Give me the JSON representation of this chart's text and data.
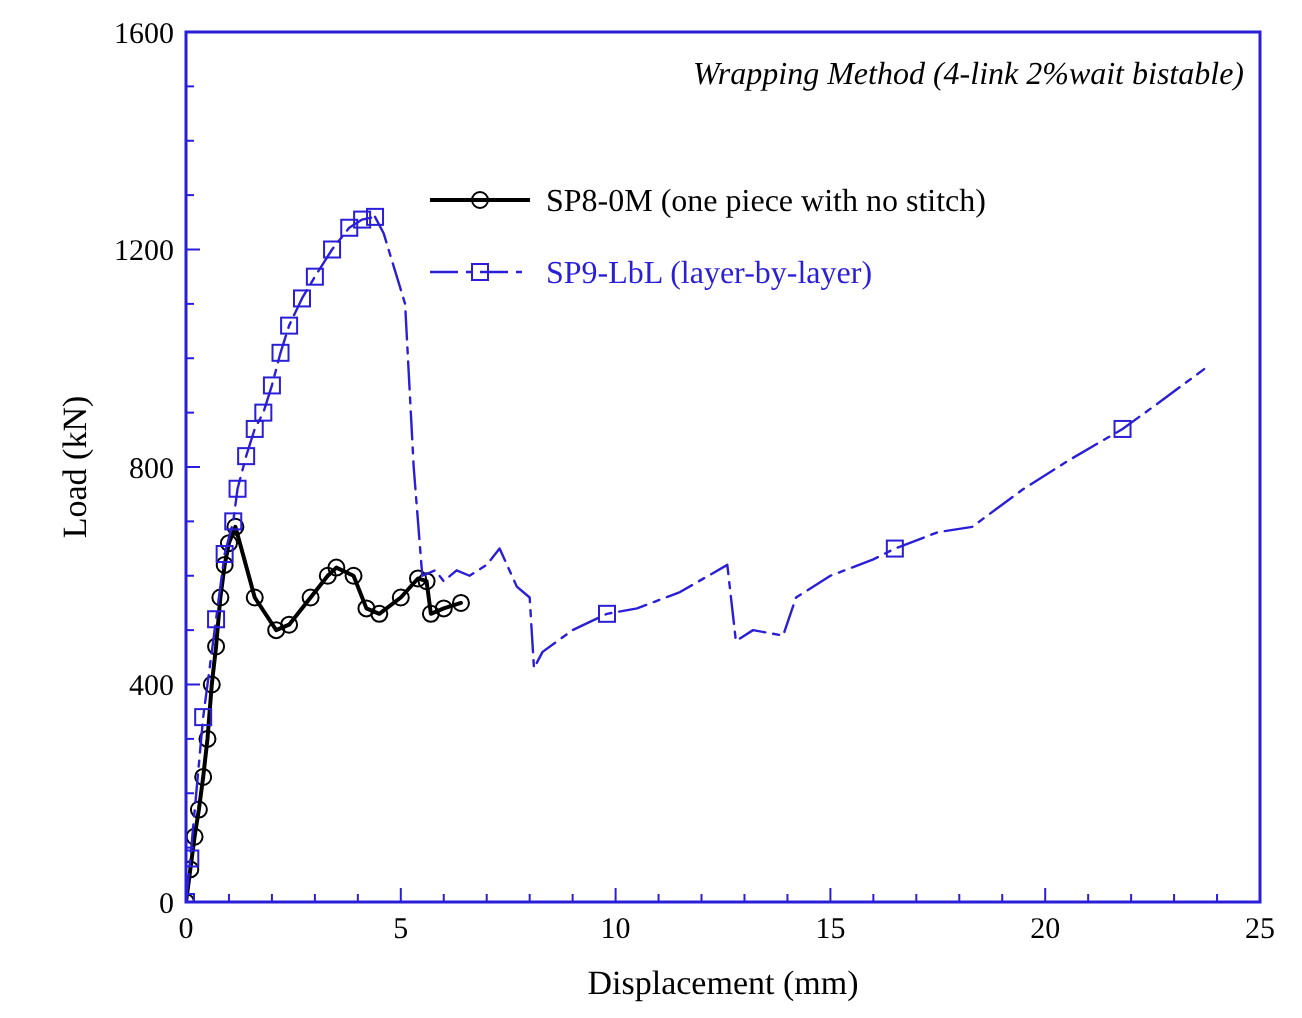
{
  "chart_data": {
    "type": "line",
    "xlabel": "Displacement (mm)",
    "ylabel": "Load (kN)",
    "annotations": [
      "Wrapping Method (4-link 2%wait bistable)"
    ],
    "legend": "top",
    "grid": false,
    "xlim": [
      0,
      25
    ],
    "ylim": [
      0,
      1600
    ],
    "xticks": [
      0,
      {
        "value": 1,
        "label": null
      },
      {
        "value": 2,
        "label": null
      },
      {
        "value": 3,
        "label": null
      },
      {
        "value": 4,
        "label": null
      },
      5,
      {
        "value": 6,
        "label": null
      },
      {
        "value": 7,
        "label": null
      },
      {
        "value": 8,
        "label": null
      },
      {
        "value": 9,
        "label": null
      },
      10,
      {
        "value": 11,
        "label": null
      },
      {
        "value": 12,
        "label": null
      },
      {
        "value": 13,
        "label": null
      },
      {
        "value": 14,
        "label": null
      },
      15,
      {
        "value": 16,
        "label": null
      },
      {
        "value": 17,
        "label": null
      },
      {
        "value": 18,
        "label": null
      },
      {
        "value": 19,
        "label": null
      },
      20,
      {
        "value": 21,
        "label": null
      },
      {
        "value": 22,
        "label": null
      },
      {
        "value": 23,
        "label": null
      },
      {
        "value": 24,
        "label": null
      },
      25
    ],
    "yticks": [
      0,
      {
        "value": 100,
        "label": null
      },
      {
        "value": 200,
        "label": null
      },
      {
        "value": 300,
        "label": null
      },
      400,
      {
        "value": 500,
        "label": null
      },
      {
        "value": 600,
        "label": null
      },
      {
        "value": 700,
        "label": null
      },
      800,
      {
        "value": 900,
        "label": null
      },
      {
        "value": 1000,
        "label": null
      },
      {
        "value": 1100,
        "label": null
      },
      1200,
      {
        "value": 1300,
        "label": null
      },
      {
        "value": 1400,
        "label": null
      },
      {
        "value": 1500,
        "label": null
      },
      1600
    ],
    "series": [
      {
        "name": "SP8-0M (one piece with no stitch)",
        "color": "#000000",
        "marker": "circle",
        "line_style": "solid",
        "x": [
          0,
          0.1,
          0.2,
          0.3,
          0.4,
          0.5,
          0.6,
          0.7,
          0.8,
          0.9,
          1.0,
          1.15,
          1.6,
          2.1,
          2.4,
          2.9,
          3.3,
          3.5,
          3.9,
          4.2,
          4.5,
          5.0,
          5.4,
          5.6,
          5.7,
          6.0,
          6.4
        ],
        "values": [
          0,
          60,
          120,
          170,
          230,
          300,
          400,
          470,
          560,
          620,
          660,
          690,
          560,
          500,
          510,
          560,
          600,
          615,
          600,
          540,
          530,
          560,
          595,
          590,
          530,
          540,
          550
        ]
      },
      {
        "name": "SP9-LbL (layer-by-layer)",
        "color": "#2a1fd6",
        "marker": "square",
        "line_style": "dashed",
        "x": [
          0,
          0.1,
          0.4,
          0.7,
          0.9,
          1.1,
          1.2,
          1.4,
          1.6,
          1.8,
          2.0,
          2.2,
          2.4,
          2.7,
          3.0,
          3.4,
          3.8,
          4.1,
          4.4
        ],
        "values": [
          0,
          80,
          340,
          520,
          640,
          700,
          760,
          820,
          870,
          900,
          950,
          1010,
          1060,
          1110,
          1150,
          1200,
          1240,
          1255,
          1260
        ]
      },
      {
        "color": "#2a1fd6",
        "marker": "none",
        "line_style": "dashed",
        "x": [
          4.4,
          4.6,
          5.1,
          5.3,
          5.5,
          5.8,
          6.0,
          6.3,
          6.6,
          7.0,
          7.3,
          7.7,
          8.0,
          8.1,
          8.3,
          9.0,
          9.8,
          10.5,
          11.5,
          12.6,
          12.8,
          13.2,
          13.9,
          14.2,
          15.0,
          16.0,
          16.5,
          17.5,
          18.3,
          19.5,
          20.5,
          21.8,
          22.5,
          23.7
        ],
        "values": [
          1260,
          1230,
          1100,
          800,
          600,
          610,
          590,
          610,
          600,
          620,
          650,
          580,
          560,
          430,
          460,
          500,
          530,
          540,
          570,
          620,
          480,
          500,
          490,
          560,
          600,
          630,
          650,
          680,
          690,
          760,
          810,
          870,
          910,
          980
        ]
      },
      {
        "type": "scatter",
        "color": "#2a1fd6",
        "marker": "square",
        "x": [
          9.8,
          16.5,
          21.8
        ],
        "values": [
          530,
          650,
          870
        ]
      }
    ]
  }
}
